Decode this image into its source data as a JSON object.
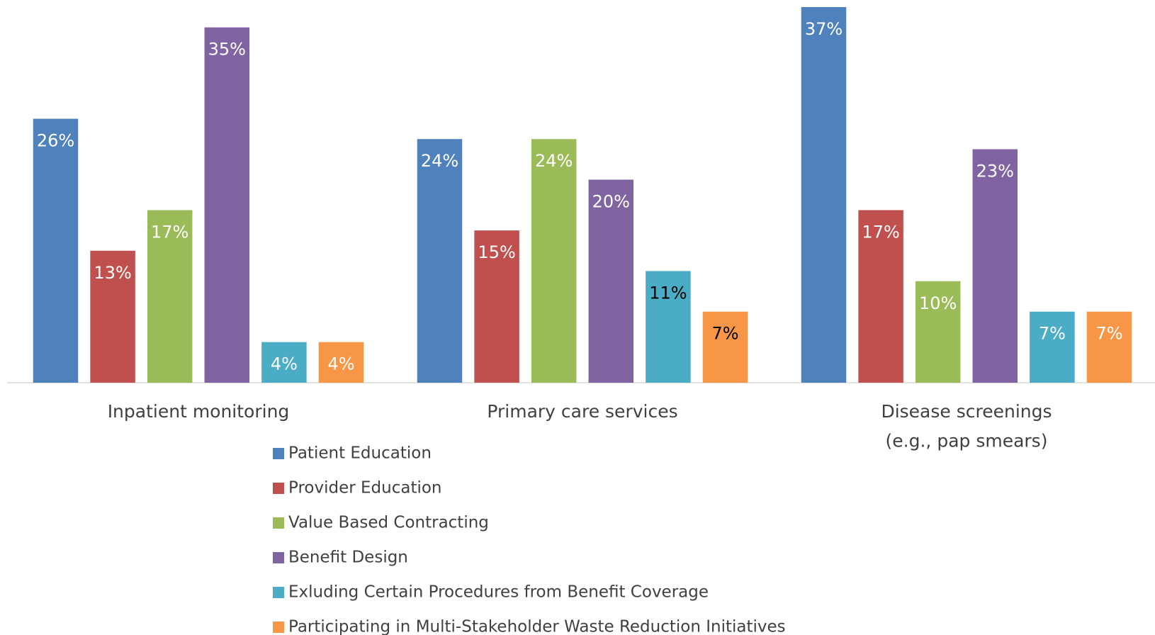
{
  "chart_data": {
    "type": "bar",
    "categories": [
      "Inpatient monitoring",
      "Primary care services",
      "Disease screenings\n(e.g., pap smears)"
    ],
    "series": [
      {
        "name": "Patient Education",
        "color": "#4f81bd",
        "values": [
          26,
          24,
          37
        ],
        "value_labels": [
          "26%",
          "24%",
          "37%"
        ],
        "value_label_colors": [
          "#ffffff",
          "#ffffff",
          "#ffffff"
        ]
      },
      {
        "name": "Provider Education",
        "color": "#c0504d",
        "values": [
          13,
          15,
          17
        ],
        "value_labels": [
          "13%",
          "15%",
          "17%"
        ],
        "value_label_colors": [
          "#ffffff",
          "#ffffff",
          "#ffffff"
        ]
      },
      {
        "name": "Value Based Contracting",
        "color": "#9bbb59",
        "values": [
          17,
          24,
          10
        ],
        "value_labels": [
          "17%",
          "24%",
          "10%"
        ],
        "value_label_colors": [
          "#ffffff",
          "#ffffff",
          "#ffffff"
        ]
      },
      {
        "name": "Benefit Design",
        "color": "#8064a2",
        "values": [
          35,
          20,
          23
        ],
        "value_labels": [
          "35%",
          "20%",
          "23%"
        ],
        "value_label_colors": [
          "#ffffff",
          "#ffffff",
          "#ffffff"
        ]
      },
      {
        "name": "Exluding Certain Procedures from Benefit Coverage",
        "color": "#4bacc6",
        "values": [
          4,
          11,
          7
        ],
        "value_labels": [
          "4%",
          "11%",
          "7%"
        ],
        "value_label_colors": [
          "#ffffff",
          "#000000",
          "#ffffff"
        ]
      },
      {
        "name": "Participating in Multi-Stakeholder Waste Reduction Initiatives",
        "color": "#f79646",
        "values": [
          4,
          7,
          7
        ],
        "value_labels": [
          "4%",
          "7%",
          "7%"
        ],
        "value_label_colors": [
          "#ffffff",
          "#000000",
          "#ffffff"
        ]
      }
    ],
    "ylim": [
      0,
      37
    ],
    "legend": "bottom"
  }
}
